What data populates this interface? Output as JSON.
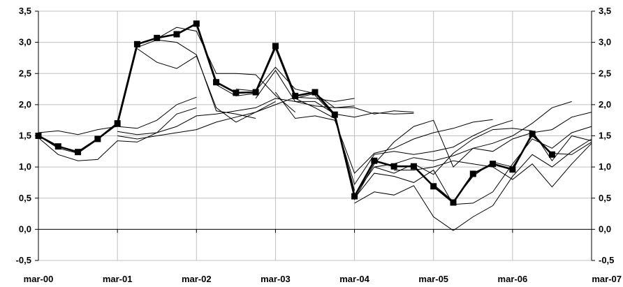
{
  "chart_data": {
    "type": "line",
    "title": "",
    "xlabel": "",
    "ylabel": "",
    "ylim": [
      -0.5,
      3.5
    ],
    "yticks": [
      -0.5,
      0.0,
      0.5,
      1.0,
      1.5,
      2.0,
      2.5,
      3.0,
      3.5
    ],
    "ytick_labels": [
      "-0,5",
      "0,0",
      "0,5",
      "1,0",
      "1,5",
      "2,0",
      "2,5",
      "3,0",
      "3,5"
    ],
    "xlim": [
      0,
      28
    ],
    "xticks": [
      0,
      4,
      8,
      12,
      16,
      20,
      24,
      28
    ],
    "xtick_labels": [
      "mar-00",
      "mar-01",
      "mar-02",
      "mar-03",
      "mar-04",
      "mar-05",
      "mar-06",
      "mar-07"
    ],
    "secondary_y_axis": true,
    "grid": true,
    "main_series": {
      "x": [
        0,
        1,
        2,
        3,
        4,
        5,
        6,
        7,
        8,
        9,
        10,
        11,
        12,
        13,
        14,
        15,
        16,
        17,
        18,
        19,
        20,
        21,
        22,
        23,
        24,
        25,
        26
      ],
      "y": [
        1.5,
        1.33,
        1.24,
        1.45,
        1.7,
        2.97,
        3.07,
        3.13,
        3.3,
        2.36,
        2.19,
        2.2,
        2.94,
        2.14,
        2.2,
        1.84,
        0.53,
        1.1,
        1.01,
        1.01,
        0.69,
        0.43,
        0.89,
        1.05,
        0.96,
        1.53,
        1.2
      ]
    },
    "series": [
      {
        "x": [
          0,
          1,
          2,
          3,
          4,
          5,
          6,
          7,
          8
        ],
        "y": [
          1.5,
          1.3,
          1.22,
          1.44,
          1.68,
          2.97,
          3.07,
          3.12,
          3.3
        ]
      },
      {
        "x": [
          0,
          1,
          2,
          3,
          4,
          5,
          6,
          7,
          8
        ],
        "y": [
          1.55,
          1.58,
          1.52,
          1.6,
          1.65,
          1.62,
          1.75,
          2.0,
          2.12
        ]
      },
      {
        "x": [
          0,
          1,
          2,
          3,
          4,
          5,
          6,
          7,
          8
        ],
        "y": [
          1.47,
          1.2,
          1.1,
          1.12,
          1.42,
          1.4,
          1.55,
          1.85,
          1.95
        ]
      },
      {
        "x": [
          4,
          5,
          6,
          7,
          8,
          9,
          10,
          11
        ],
        "y": [
          1.65,
          2.92,
          3.04,
          3.0,
          2.8,
          1.9,
          1.85,
          1.78
        ]
      },
      {
        "x": [
          5,
          6,
          7,
          8,
          9,
          10,
          11,
          12
        ],
        "y": [
          2.9,
          2.68,
          2.58,
          2.78,
          1.95,
          1.72,
          1.88,
          2.05
        ]
      },
      {
        "x": [
          6,
          7,
          8,
          9,
          10,
          11,
          12,
          13
        ],
        "y": [
          3.06,
          3.24,
          3.18,
          2.5,
          2.5,
          2.48,
          2.15,
          1.88
        ]
      },
      {
        "x": [
          8,
          9,
          10,
          11,
          12,
          13,
          14,
          15,
          16
        ],
        "y": [
          3.27,
          2.32,
          2.14,
          2.18,
          2.9,
          2.1,
          2.18,
          1.83,
          0.62
        ]
      },
      {
        "x": [
          4,
          5,
          6,
          7,
          8,
          9,
          10,
          11,
          12,
          13,
          14,
          15,
          16
        ],
        "y": [
          1.57,
          1.52,
          1.55,
          1.65,
          1.82,
          1.85,
          1.9,
          1.95,
          2.1,
          2.05,
          1.98,
          1.95,
          1.98
        ]
      },
      {
        "x": [
          4,
          5,
          6,
          7,
          8,
          9,
          10,
          11,
          12,
          13,
          14,
          15,
          16
        ],
        "y": [
          1.5,
          1.45,
          1.5,
          1.55,
          1.6,
          1.72,
          1.8,
          1.88,
          2.0,
          2.12,
          2.1,
          2.05,
          2.1
        ]
      },
      {
        "x": [
          10,
          11,
          12,
          13,
          14,
          15,
          16,
          17,
          18,
          19
        ],
        "y": [
          2.25,
          2.22,
          2.6,
          2.25,
          2.18,
          1.95,
          1.95,
          1.85,
          1.9,
          1.88
        ]
      },
      {
        "x": [
          11,
          12,
          13,
          14,
          15,
          16,
          17,
          18,
          19
        ],
        "y": [
          2.1,
          2.55,
          2.05,
          2.05,
          1.85,
          1.8,
          1.87,
          1.85,
          1.86
        ]
      },
      {
        "x": [
          12,
          13,
          14,
          15,
          16,
          17,
          18,
          19,
          20,
          21,
          22,
          23
        ],
        "y": [
          2.2,
          1.78,
          1.82,
          1.75,
          0.9,
          1.22,
          1.3,
          1.45,
          1.55,
          1.62,
          1.72,
          1.76
        ]
      },
      {
        "x": [
          13,
          14,
          15,
          16,
          17,
          18,
          19,
          20,
          21,
          22,
          23,
          24
        ],
        "y": [
          2.1,
          1.95,
          1.78,
          0.72,
          1.2,
          1.25,
          1.2,
          1.25,
          1.32,
          1.5,
          1.65,
          1.75
        ]
      },
      {
        "x": [
          14,
          15,
          16,
          17,
          18,
          19,
          20,
          21,
          22,
          23,
          24,
          25,
          26,
          27
        ],
        "y": [
          2.15,
          1.82,
          0.55,
          1.0,
          1.05,
          1.15,
          1.1,
          1.18,
          1.3,
          1.38,
          1.5,
          1.7,
          1.95,
          2.05
        ]
      },
      {
        "x": [
          15,
          16,
          17,
          18,
          19,
          20,
          21,
          22,
          23,
          24,
          25,
          26,
          27,
          28
        ],
        "y": [
          1.85,
          0.48,
          1.05,
          1.4,
          1.65,
          1.75,
          1.0,
          1.3,
          1.25,
          1.45,
          1.55,
          1.6,
          1.8,
          1.88
        ]
      },
      {
        "x": [
          16,
          17,
          18,
          19,
          20,
          21,
          22,
          23,
          24,
          25,
          26,
          27,
          28
        ],
        "y": [
          0.42,
          0.6,
          0.55,
          0.7,
          0.2,
          -0.02,
          0.2,
          0.38,
          0.85,
          1.2,
          1.0,
          1.25,
          1.45
        ]
      },
      {
        "x": [
          16,
          17,
          18,
          19,
          20,
          21,
          22,
          23,
          24,
          25,
          26,
          27,
          28
        ],
        "y": [
          0.5,
          0.9,
          0.85,
          0.75,
          0.95,
          0.4,
          0.42,
          0.6,
          1.05,
          1.45,
          1.3,
          1.55,
          1.65
        ]
      },
      {
        "x": [
          17,
          18,
          19,
          20,
          21,
          22,
          23,
          24,
          25,
          26,
          27,
          28
        ],
        "y": [
          1.0,
          0.9,
          1.05,
          0.88,
          1.22,
          1.45,
          1.6,
          1.62,
          1.58,
          1.1,
          1.5,
          1.42
        ]
      },
      {
        "x": [
          18,
          19,
          20,
          21,
          22,
          23,
          24,
          25,
          26,
          27,
          28
        ],
        "y": [
          0.95,
          0.95,
          1.0,
          1.1,
          1.05,
          1.0,
          0.8,
          1.05,
          0.68,
          1.05,
          1.38
        ]
      },
      {
        "x": [
          20,
          21,
          22,
          23,
          24,
          25,
          26,
          27,
          28
        ],
        "y": [
          0.72,
          0.45,
          0.85,
          1.08,
          1.0,
          1.5,
          1.22,
          1.2,
          1.4
        ]
      }
    ]
  }
}
